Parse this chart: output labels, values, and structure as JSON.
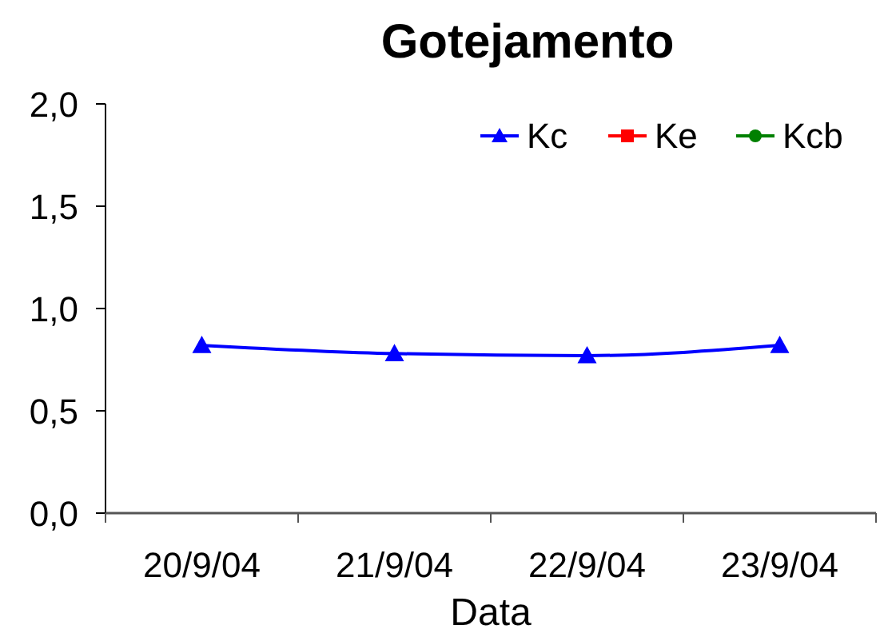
{
  "chart_data": {
    "type": "line",
    "title": "Gotejamento",
    "xlabel": "Data",
    "categories": [
      "20/9/04",
      "21/9/04",
      "22/9/04",
      "23/9/04"
    ],
    "series": [
      {
        "name": "Kc",
        "color": "#0000ff",
        "marker": "triangle",
        "values": [
          0.82,
          0.78,
          0.77,
          0.82
        ]
      },
      {
        "name": "Ke",
        "color": "#ff0000",
        "marker": "square",
        "values": [
          null,
          null,
          null,
          null
        ]
      },
      {
        "name": "Kcb",
        "color": "#008000",
        "marker": "circle",
        "values": [
          null,
          null,
          null,
          null
        ]
      }
    ],
    "ylim": [
      0,
      2
    ],
    "yticks": [
      {
        "value": 0,
        "label": "0,0"
      },
      {
        "value": 0.5,
        "label": "0,5"
      },
      {
        "value": 1,
        "label": "1,0"
      },
      {
        "value": 1.5,
        "label": "1,5"
      },
      {
        "value": 2,
        "label": "2,0"
      }
    ],
    "legend": "top right"
  }
}
